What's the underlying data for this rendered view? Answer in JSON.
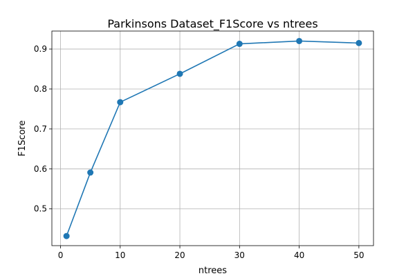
{
  "chart_data": {
    "type": "line",
    "title": "Parkinsons Dataset_F1Score vs ntrees",
    "xlabel": "ntrees",
    "ylabel": "F1Score",
    "x": [
      1,
      5,
      10,
      20,
      30,
      40,
      50
    ],
    "series": [
      {
        "values": [
          0.432,
          0.591,
          0.767,
          0.838,
          0.913,
          0.92,
          0.915
        ],
        "color": "#1f77b4",
        "marker": "circle"
      }
    ],
    "xlim": [
      -1.45,
      52.45
    ],
    "ylim": [
      0.408,
      0.945
    ],
    "xticks": [
      0,
      10,
      20,
      30,
      40,
      50
    ],
    "yticks": [
      0.5,
      0.6,
      0.7,
      0.8,
      0.9
    ],
    "xtick_labels": [
      "0",
      "10",
      "20",
      "30",
      "40",
      "50"
    ],
    "ytick_labels": [
      "0.5",
      "0.6",
      "0.7",
      "0.8",
      "0.9"
    ],
    "grid": true,
    "legend": "none"
  }
}
